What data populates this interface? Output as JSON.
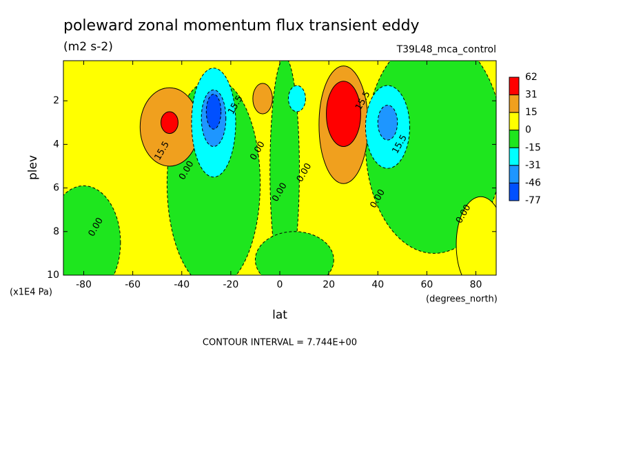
{
  "chart_data": {
    "type": "contour",
    "title": "poleward zonal momentum flux transient eddy",
    "subtitle": "(m2 s-2)",
    "dataset": "T39L48_mca_control",
    "xlabel": "lat",
    "xunits": "(degrees_north)",
    "ylabel": "plev",
    "yunits": "(x1E4 Pa)",
    "footnote": "CONTOUR INTERVAL = 7.744E+00",
    "xlim": [
      -88.3,
      88.3
    ],
    "xticks": [
      -80,
      -60,
      -40,
      -20,
      0,
      20,
      40,
      60,
      80
    ],
    "ylim": [
      10,
      0.16
    ],
    "yticks": [
      2,
      4,
      6,
      8,
      10
    ],
    "colorbar": {
      "levels": [
        62,
        31,
        15,
        0,
        -15,
        -31,
        -46,
        -77
      ],
      "colors": [
        "#ff0000",
        "#f0a01e",
        "#ffff00",
        "#1ee61e",
        "#00ffff",
        "#1e96ff",
        "#0050ff"
      ]
    },
    "background_band": 2,
    "regions": [
      {
        "lat": -80,
        "plev": 8.5,
        "dlat": 15,
        "dplev": 2.6,
        "band": 3
      },
      {
        "lat": -27,
        "plev": 5.8,
        "dlat": 19,
        "dplev": 4.8,
        "band": 3
      },
      {
        "lat": 2,
        "plev": 5.2,
        "dlat": 6,
        "dplev": 5.2,
        "band": 3
      },
      {
        "lat": 6,
        "plev": 9.3,
        "dlat": 16,
        "dplev": 1.3,
        "band": 3
      },
      {
        "lat": 63,
        "plev": 4,
        "dlat": 28,
        "dplev": 5,
        "band": 3
      },
      {
        "lat": 82,
        "plev": 8.6,
        "dlat": 10,
        "dplev": 2.2,
        "band": 2
      },
      {
        "lat": -45,
        "plev": 3.2,
        "dlat": 12,
        "dplev": 1.8,
        "band": 1
      },
      {
        "lat": -45,
        "plev": 3,
        "dlat": 3.5,
        "dplev": 0.5,
        "band": 0
      },
      {
        "lat": -7,
        "plev": 1.9,
        "dlat": 4,
        "dplev": 0.7,
        "band": 1
      },
      {
        "lat": 26,
        "plev": 3.1,
        "dlat": 10,
        "dplev": 2.7,
        "band": 1
      },
      {
        "lat": 26,
        "plev": 2.6,
        "dlat": 7,
        "dplev": 1.5,
        "band": 0
      },
      {
        "lat": -27,
        "plev": 3,
        "dlat": 9,
        "dplev": 2.5,
        "band": 4
      },
      {
        "lat": -27,
        "plev": 2.8,
        "dlat": 5,
        "dplev": 1.3,
        "band": 5
      },
      {
        "lat": -27,
        "plev": 2.5,
        "dlat": 3,
        "dplev": 0.8,
        "band": 6
      },
      {
        "lat": 7,
        "plev": 1.9,
        "dlat": 3.5,
        "dplev": 0.6,
        "band": 4
      },
      {
        "lat": 44,
        "plev": 3.2,
        "dlat": 9,
        "dplev": 1.9,
        "band": 4
      },
      {
        "lat": 44,
        "plev": 3,
        "dlat": 4,
        "dplev": 0.8,
        "band": 5
      }
    ],
    "contour_labels": [
      {
        "value": 15.5,
        "lat": -48,
        "plev": 4.3
      },
      {
        "value": 0,
        "label": "0.00",
        "lat": -38,
        "plev": 5.2
      },
      {
        "value": 15.5,
        "lat": -18,
        "plev": 2.2
      },
      {
        "value": 0,
        "label": "0.00",
        "lat": -9,
        "plev": 4.3
      },
      {
        "value": 0,
        "label": "0.00",
        "lat": 0,
        "plev": 6.2
      },
      {
        "value": 0,
        "label": "0.00",
        "lat": 10,
        "plev": 5.3
      },
      {
        "value": 15.5,
        "lat": 34,
        "plev": 2
      },
      {
        "value": 15.5,
        "lat": 49,
        "plev": 4
      },
      {
        "value": 0,
        "label": "0.00",
        "lat": 40,
        "plev": 6.5
      },
      {
        "value": 0,
        "label": "0.00",
        "lat": 75,
        "plev": 7.2
      },
      {
        "value": 0,
        "label": "0.00",
        "lat": -75,
        "plev": 7.8
      }
    ]
  }
}
